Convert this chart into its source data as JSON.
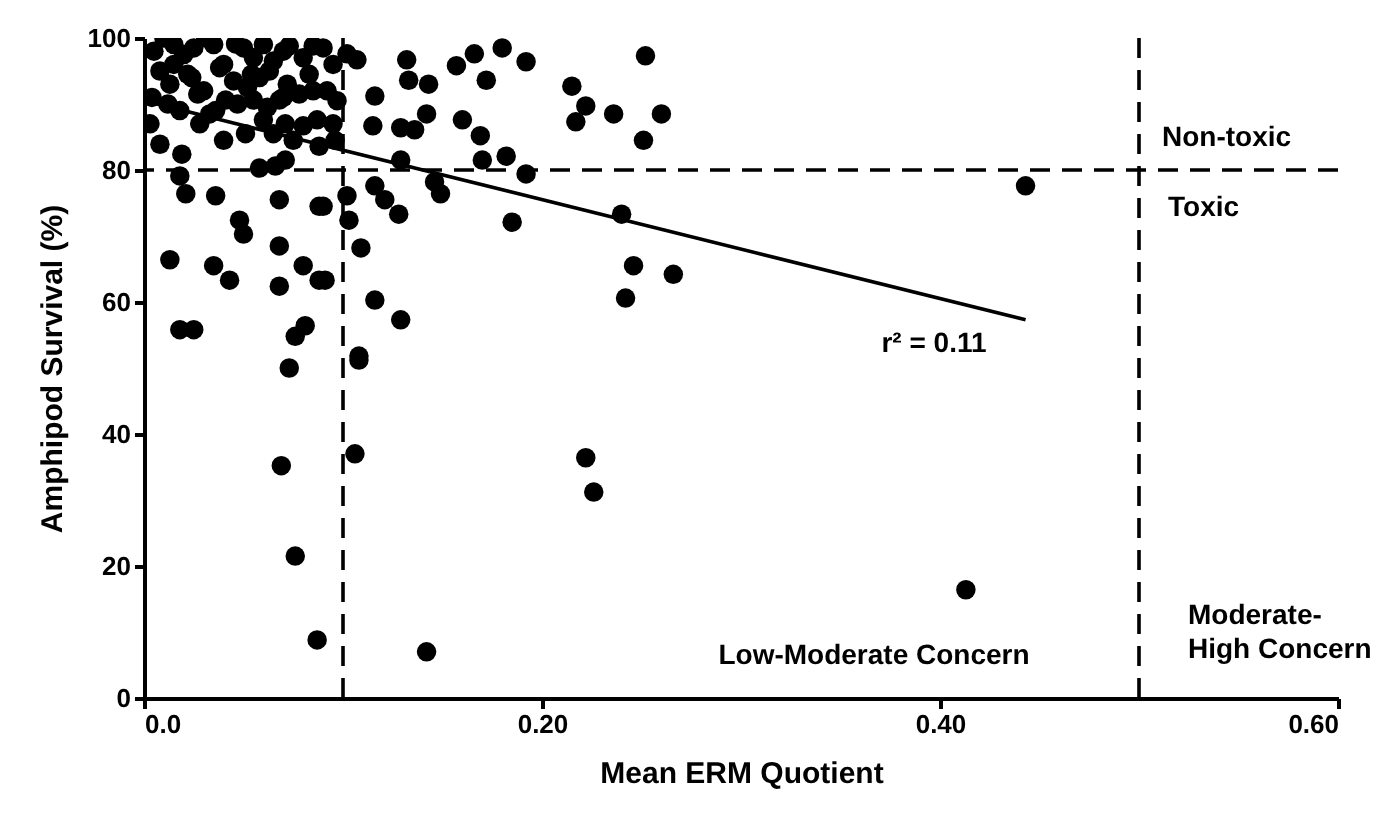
{
  "chart_data": {
    "type": "scatter",
    "xlabel": "Mean ERM Quotient",
    "ylabel": "Amphipod Survival (%)",
    "xlim": [
      0,
      0.6
    ],
    "ylim": [
      0,
      100
    ],
    "xticks": [
      {
        "value": 0,
        "label": "0.0"
      },
      {
        "value": 0.2,
        "label": "0.20"
      },
      {
        "value": 0.4,
        "label": "0.40"
      },
      {
        "value": 0.6,
        "label": "0.60"
      }
    ],
    "yticks": [
      0,
      20,
      40,
      60,
      80,
      100
    ],
    "grid": false,
    "marker": "circle",
    "series": [
      {
        "color": "#000000",
        "x": [
          0.443,
          0.413,
          0.252,
          0.18,
          0.192,
          0.166,
          0.157,
          0.172,
          0.215,
          0.222,
          0.217,
          0.236,
          0.26,
          0.251,
          0.24,
          0.185,
          0.246,
          0.266,
          0.242,
          0.192,
          0.182,
          0.17,
          0.169,
          0.16,
          0.142,
          0.143,
          0.132,
          0.133,
          0.136,
          0.129,
          0.115,
          0.116,
          0.129,
          0.146,
          0.149,
          0.128,
          0.121,
          0.116,
          0.102,
          0.103,
          0.109,
          0.116,
          0.129,
          0.108,
          0.091,
          0.088,
          0.073,
          0.108,
          0.069,
          0.106,
          0.222,
          0.226,
          0.076,
          0.087,
          0.142,
          0.013,
          0.035,
          0.043,
          0.018,
          0.025,
          0.081,
          0.076,
          0.068,
          0.08,
          0.088,
          0.09,
          0.068,
          0.068,
          0.05,
          0.048,
          0.036,
          0.021,
          0.018,
          0.058,
          0.066,
          0.071,
          0.019,
          0.003,
          0.008,
          0.028,
          0.04,
          0.041,
          0.055,
          0.06,
          0.071,
          0.08,
          0.087,
          0.095,
          0.096,
          0.088,
          0.075,
          0.065,
          0.051,
          0.068,
          0.078,
          0.073,
          0.085,
          0.102,
          0.107,
          0.046,
          0.031,
          0.01,
          0.005,
          0.015,
          0.02,
          0.025,
          0.035,
          0.04,
          0.05,
          0.055,
          0.06,
          0.065,
          0.07,
          0.08,
          0.09,
          0.095,
          0.008,
          0.013,
          0.022,
          0.03,
          0.038,
          0.045,
          0.052,
          0.058,
          0.063,
          0.072,
          0.083,
          0.092,
          0.004,
          0.012,
          0.018,
          0.027,
          0.033,
          0.047,
          0.062,
          0.07,
          0.085,
          0.097,
          0.015,
          0.024,
          0.036,
          0.054
        ],
        "values": [
          77.6,
          16.4,
          97.3,
          98.5,
          96.4,
          97.6,
          95.8,
          93.6,
          92.7,
          89.7,
          87.3,
          88.5,
          88.5,
          84.5,
          73.3,
          72.1,
          65.5,
          64.2,
          60.6,
          79.4,
          82.1,
          81.5,
          85.2,
          87.6,
          88.5,
          93.0,
          96.7,
          93.6,
          86.1,
          86.4,
          86.7,
          91.2,
          81.5,
          78.2,
          76.4,
          73.3,
          75.5,
          77.6,
          76.1,
          72.4,
          68.2,
          60.3,
          57.3,
          51.8,
          63.3,
          74.5,
          50.0,
          51.2,
          35.2,
          37.0,
          36.4,
          31.2,
          21.5,
          8.8,
          7.0,
          66.4,
          65.5,
          63.3,
          55.8,
          55.8,
          56.4,
          54.8,
          62.4,
          65.5,
          63.3,
          74.5,
          68.5,
          75.5,
          70.3,
          72.4,
          76.1,
          76.4,
          79.1,
          80.3,
          80.6,
          81.5,
          82.4,
          87.0,
          83.9,
          87.0,
          84.5,
          90.6,
          90.6,
          87.6,
          87.0,
          86.7,
          87.6,
          87.0,
          84.5,
          83.6,
          84.5,
          85.5,
          85.5,
          90.6,
          91.5,
          98.8,
          98.8,
          97.6,
          96.7,
          99.1,
          100,
          100,
          98.0,
          99.0,
          97.5,
          98.5,
          99.0,
          96.0,
          98.5,
          97.0,
          99.0,
          96.5,
          98.0,
          97.0,
          98.5,
          96.0,
          95.0,
          93.0,
          94.5,
          92.0,
          95.5,
          93.5,
          92.5,
          94.0,
          95.0,
          93.0,
          94.5,
          92.0,
          91.0,
          90.0,
          89.0,
          91.5,
          88.5,
          90.0,
          89.5,
          91.0,
          92.0,
          90.5,
          96.0,
          94.0,
          89.0,
          94.5
        ]
      },
      {
        "type": "line",
        "color": "#000000",
        "marker": "none",
        "line_style": "solid",
        "x": [
          0,
          0.443
        ],
        "values": [
          90.5,
          57.3
        ]
      }
    ],
    "ref_lines": [
      {
        "axis": "y",
        "value": 80,
        "line_style": "dashed",
        "color": "#000000"
      },
      {
        "axis": "x",
        "value": 0.1,
        "line_style": "dashed",
        "color": "#000000"
      },
      {
        "axis": "x",
        "value": 0.5,
        "line_style": "dashed",
        "color": "#000000"
      }
    ],
    "annotations": [
      "Non-toxic",
      "Toxic",
      "r² = 0.11",
      "Low-Moderate Concern",
      "Moderate-\nHigh Concern"
    ]
  }
}
